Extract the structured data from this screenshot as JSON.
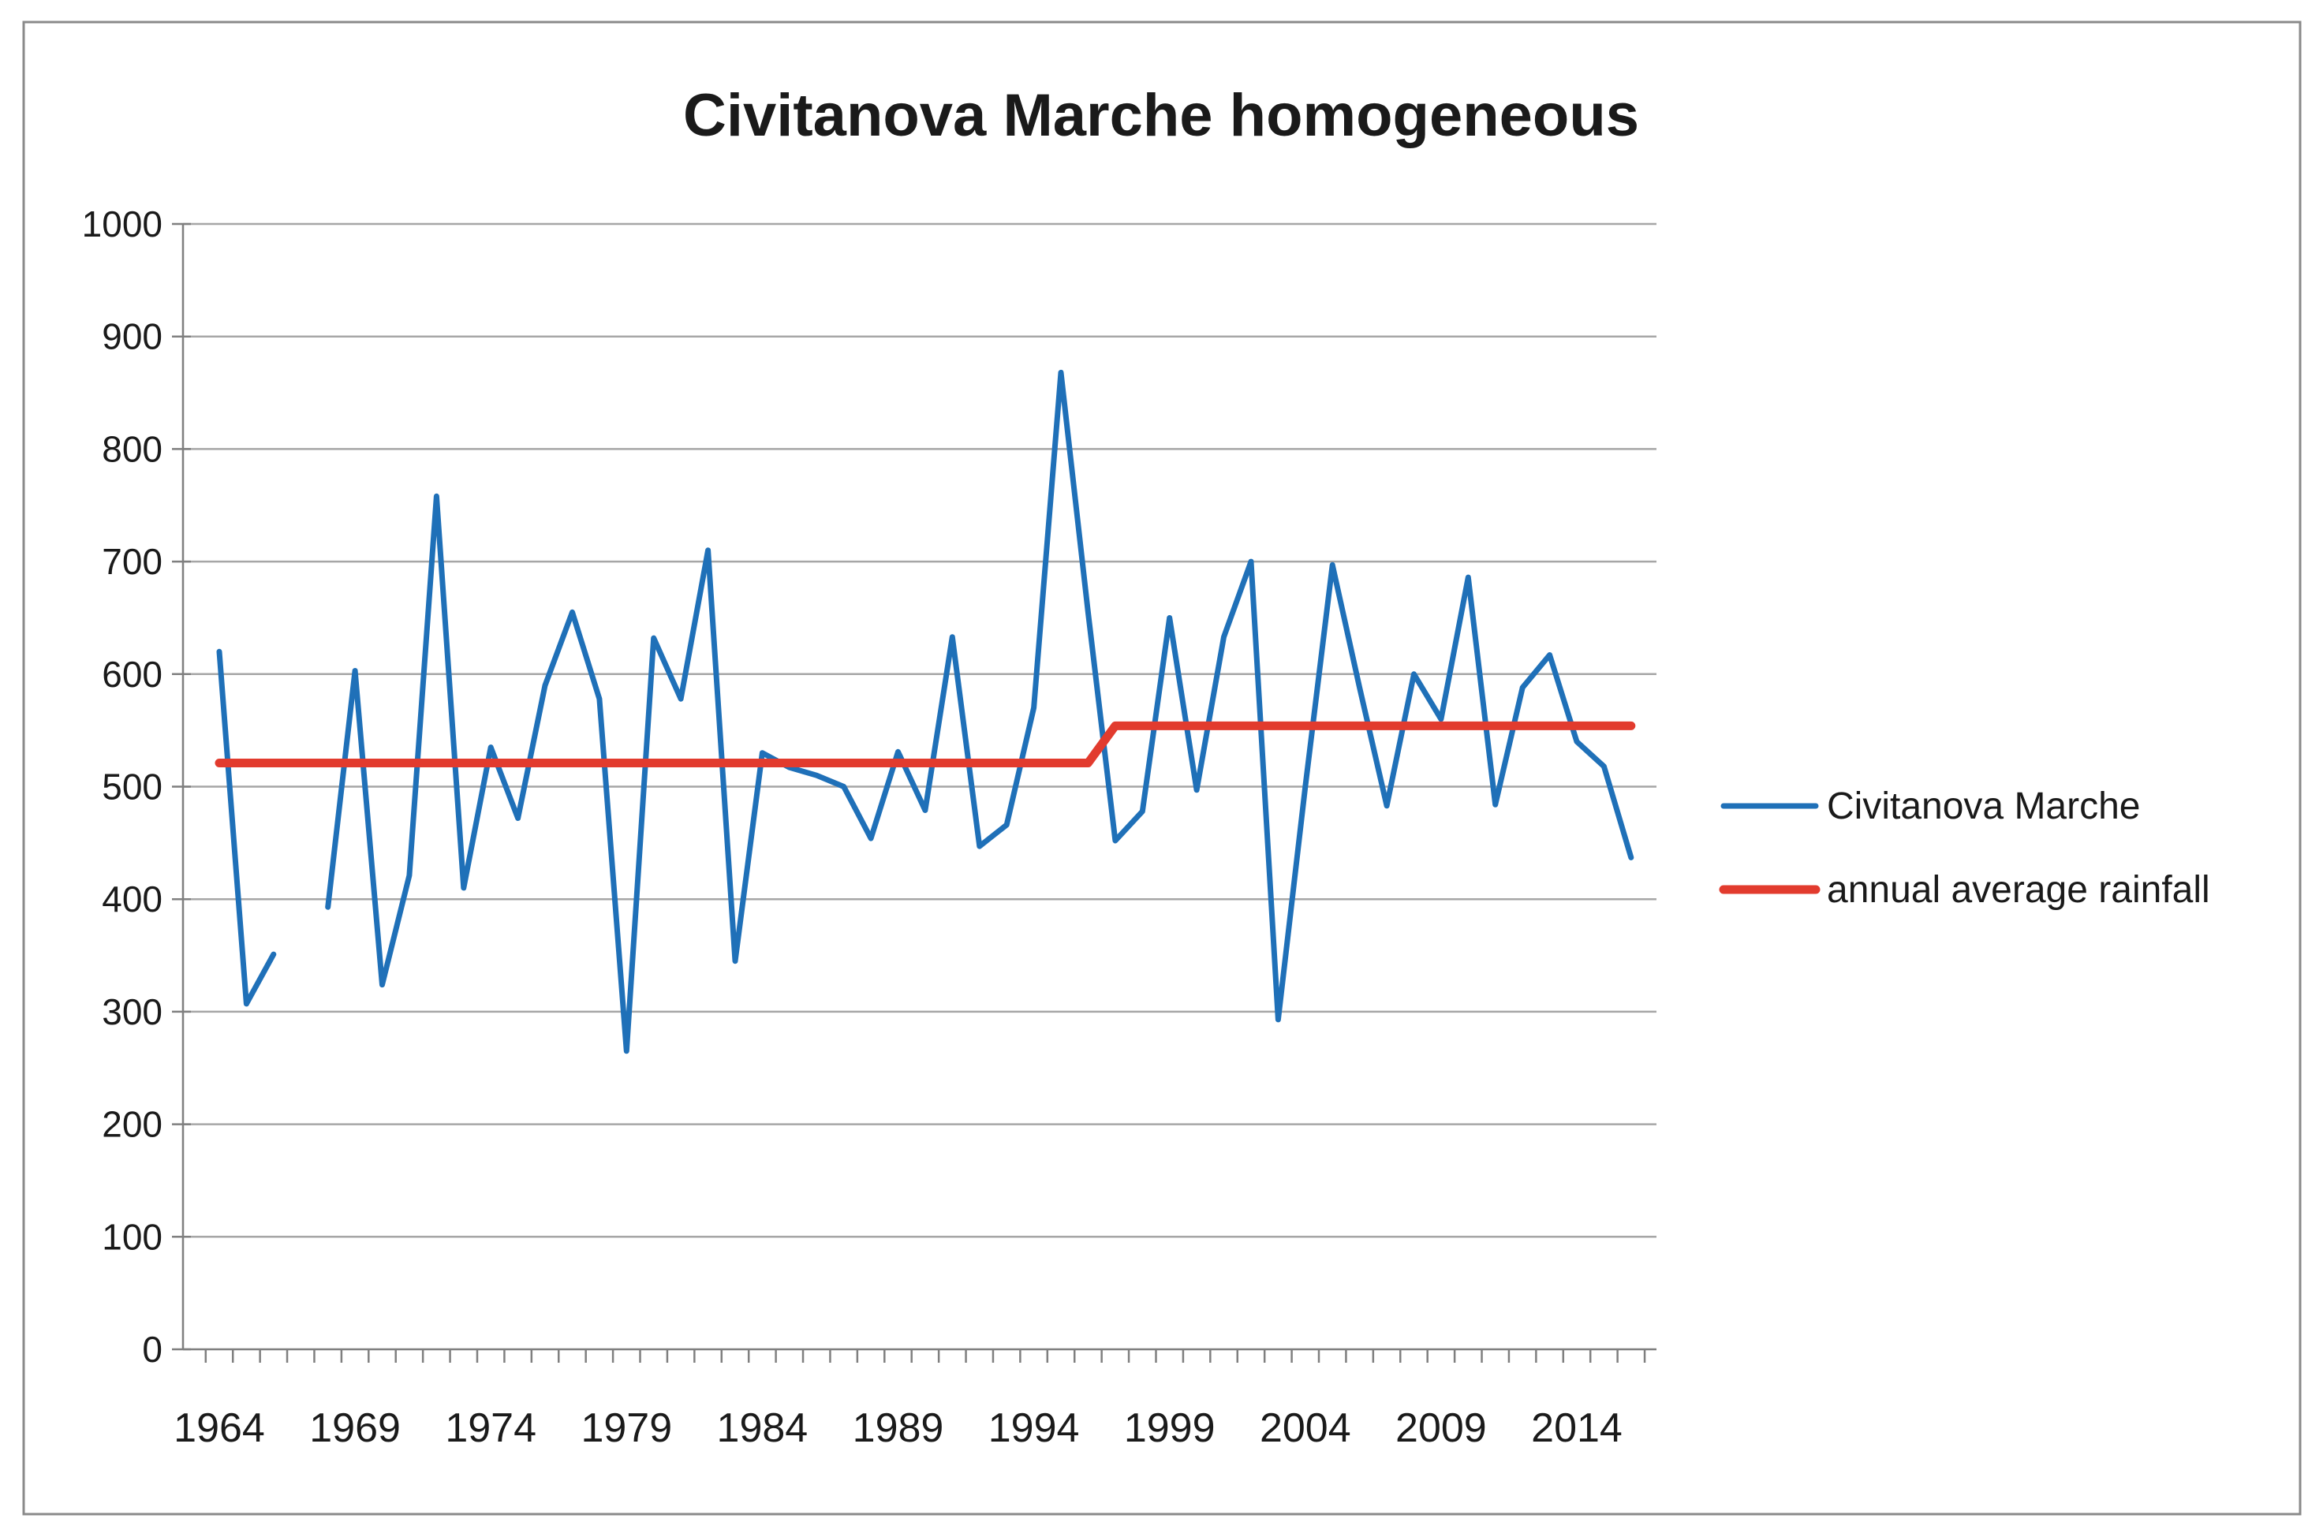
{
  "chart_data": {
    "type": "line",
    "title": "Civitanova Marche homogeneous",
    "xlabel": "",
    "ylabel": "",
    "ylim": [
      0,
      1000
    ],
    "ytick_step": 100,
    "grid": "horizontal",
    "legend_position": "right",
    "x": [
      1964,
      1965,
      1966,
      1967,
      1968,
      1969,
      1970,
      1971,
      1972,
      1973,
      1974,
      1975,
      1976,
      1977,
      1978,
      1979,
      1980,
      1981,
      1982,
      1983,
      1984,
      1985,
      1986,
      1987,
      1988,
      1989,
      1990,
      1991,
      1992,
      1993,
      1994,
      1995,
      1996,
      1997,
      1998,
      1999,
      2000,
      2001,
      2002,
      2003,
      2004,
      2005,
      2006,
      2007,
      2008,
      2009,
      2010,
      2011,
      2012,
      2013,
      2014,
      2015,
      2016
    ],
    "series": [
      {
        "name": "Civitanova Marche",
        "color": "#1F70B8",
        "values": [
          620,
          307,
          351,
          null,
          393,
          603,
          324,
          421,
          758,
          410,
          535,
          472,
          590,
          655,
          578,
          265,
          632,
          578,
          710,
          345,
          530,
          517,
          510,
          500,
          454,
          531,
          479,
          633,
          447,
          466,
          570,
          868,
          655,
          452,
          478,
          650,
          497,
          633,
          700,
          293,
          500,
          697,
          588,
          483,
          600,
          560,
          686,
          484,
          588,
          617,
          540,
          518,
          437
        ]
      },
      {
        "name": "annual average rainfall",
        "color": "#E23B2E",
        "values": [
          521,
          521,
          521,
          521,
          521,
          521,
          521,
          521,
          521,
          521,
          521,
          521,
          521,
          521,
          521,
          521,
          521,
          521,
          521,
          521,
          521,
          521,
          521,
          521,
          521,
          521,
          521,
          521,
          521,
          521,
          521,
          521,
          521,
          554,
          554,
          554,
          554,
          554,
          554,
          554,
          554,
          554,
          554,
          554,
          554,
          554,
          554,
          554,
          554,
          554,
          554,
          554,
          554
        ]
      }
    ]
  },
  "axes": {
    "y_tick_labels": [
      "1000",
      "900",
      "800",
      "700",
      "600",
      "500",
      "400",
      "300",
      "200",
      "100",
      "0"
    ],
    "x_tick_labels": [
      "1964",
      "1969",
      "1974",
      "1979",
      "1984",
      "1989",
      "1994",
      "1999",
      "2004",
      "2009",
      "2014"
    ]
  },
  "legend": {
    "items": [
      {
        "label": "Civitanova Marche",
        "color": "#1F70B8"
      },
      {
        "label": "annual average rainfall",
        "color": "#E23B2E"
      }
    ]
  },
  "colors": {
    "blue_series": "#1F70B8",
    "red_series": "#E23B2E",
    "gridline": "#A6A6A6",
    "axis": "#7F7F7F",
    "text": "#1A1A1A",
    "frame": "#8A8A8A",
    "background": "#FFFFFF"
  }
}
